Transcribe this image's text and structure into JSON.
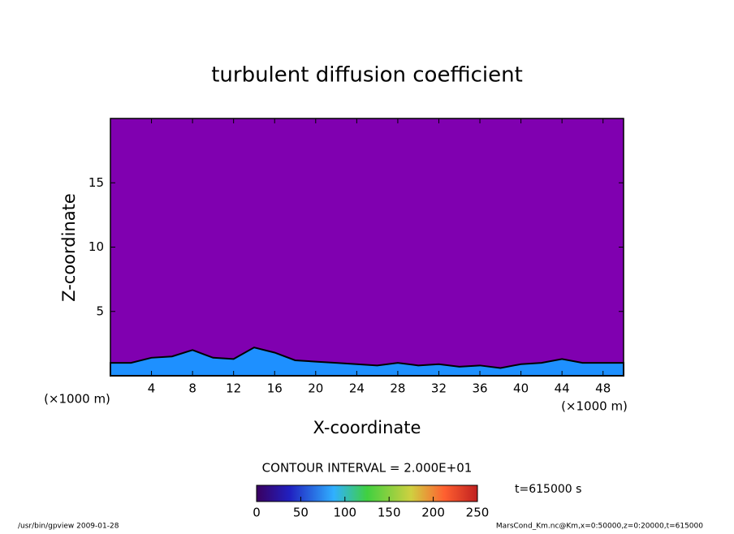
{
  "chart_data": {
    "type": "area",
    "title": "turbulent diffusion coefficient",
    "x_label": "X-coordinate",
    "y_label": "Z-coordinate",
    "x_unit": "(×1000 m)",
    "y_unit": "(×1000 m)",
    "x": [
      0,
      2,
      4,
      6,
      8,
      10,
      12,
      14,
      16,
      18,
      20,
      22,
      24,
      26,
      28,
      30,
      32,
      34,
      36,
      38,
      40,
      42,
      44,
      46,
      48,
      50
    ],
    "values": [
      1.0,
      1.0,
      1.4,
      1.5,
      2.0,
      1.4,
      1.3,
      2.2,
      1.8,
      1.2,
      1.1,
      1.0,
      0.9,
      0.8,
      1.0,
      0.8,
      0.9,
      0.7,
      0.8,
      0.6,
      0.9,
      1.0,
      1.3,
      1.0,
      1.0,
      1.0
    ],
    "color": "#1e90ff",
    "background": "#8000b0",
    "xlim": [
      0,
      50
    ],
    "xticks": [
      4,
      8,
      12,
      16,
      20,
      24,
      28,
      32,
      36,
      40,
      44,
      48
    ],
    "ylim": [
      0,
      20
    ],
    "yticks": [
      5,
      10,
      15
    ],
    "contour_interval": "CONTOUR INTERVAL = 2.000E+01",
    "time_label": "t=615000 s",
    "colorbar": {
      "lim": [
        0,
        250
      ],
      "ticks": [
        0,
        50,
        100,
        150,
        200,
        250
      ]
    },
    "footer_left": "/usr/bin/gpview   2009-01-28",
    "footer_right": "MarsCond_Km.nc@Km,x=0:50000,z=0:20000,t=615000"
  }
}
